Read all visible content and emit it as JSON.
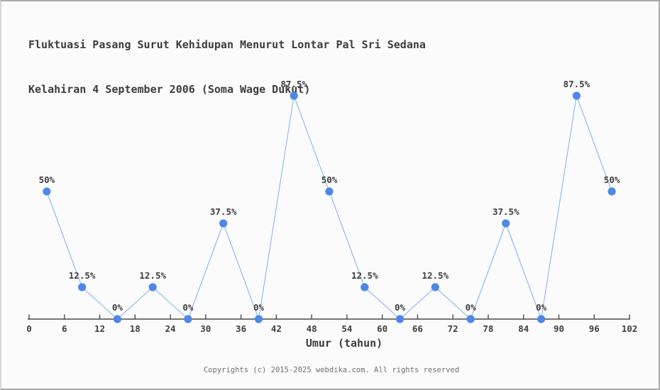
{
  "title": {
    "line1": "Fluktuasi Pasang Surut Kehidupan Menurut Lontar Pal Sri Sedana",
    "line2": "Kelahiran 4 September 2006 (Soma Wage Dukut)"
  },
  "footer": "Copyrights (c) 2015-2025 webdika.com. All rights reserved",
  "chart_data": {
    "type": "line",
    "x": [
      3,
      9,
      15,
      21,
      27,
      33,
      39,
      45,
      51,
      57,
      63,
      69,
      75,
      81,
      87,
      93,
      99
    ],
    "values": [
      50,
      12.5,
      0,
      12.5,
      0,
      37.5,
      0,
      87.5,
      50,
      12.5,
      0,
      12.5,
      0,
      37.5,
      0,
      87.5,
      50
    ],
    "point_labels": [
      "50%",
      "12.5%",
      "0%",
      "12.5%",
      "0%",
      "37.5%",
      "0%",
      "87.5%",
      "50%",
      "12.5%",
      "0%",
      "12.5%",
      "0%",
      "37.5%",
      "0%",
      "87.5%",
      "50%"
    ],
    "x_ticks": [
      0,
      6,
      12,
      18,
      24,
      30,
      36,
      42,
      48,
      54,
      60,
      66,
      72,
      78,
      84,
      90,
      96,
      102
    ],
    "xlabel": "Umur (tahun)",
    "xlim": [
      0,
      102
    ],
    "ylim": [
      0,
      100
    ],
    "grid": false,
    "legend": null,
    "colors": {
      "marker": "#4d87e8",
      "line": "#8ab4f2",
      "axis": "#4a4a4a",
      "tick_text": "#3d3d3d",
      "label_text": "#3d3d3d"
    }
  }
}
